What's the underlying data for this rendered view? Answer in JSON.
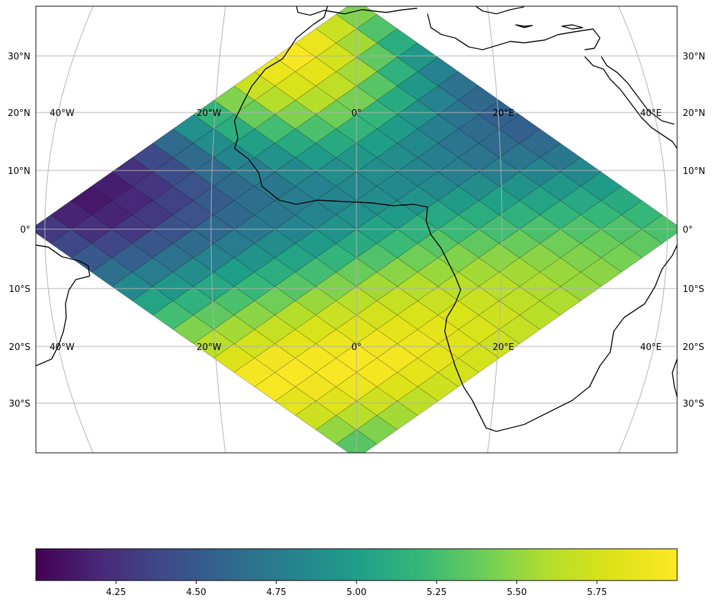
{
  "map": {
    "projection": "orthographic",
    "central_longitude": 0,
    "central_latitude": 0,
    "lon_range": [
      -48,
      48
    ],
    "lat_range": [
      -38,
      38
    ],
    "gridlines": true,
    "coastlines": true,
    "lat_ticks": [
      {
        "value": 30,
        "label": "30°N"
      },
      {
        "value": 20,
        "label": "20°N"
      },
      {
        "value": 10,
        "label": "10°N"
      },
      {
        "value": 0,
        "label": "0°"
      },
      {
        "value": -10,
        "label": "10°S"
      },
      {
        "value": -20,
        "label": "20°S"
      },
      {
        "value": -30,
        "label": "30°S"
      }
    ],
    "lon_labels_top": [
      {
        "value": -40,
        "label": "40°W"
      },
      {
        "value": -20,
        "label": "20°W"
      },
      {
        "value": 0,
        "label": "0°"
      },
      {
        "value": 20,
        "label": "20°E"
      },
      {
        "value": 40,
        "label": "40°E"
      }
    ],
    "lon_labels_bottom": [
      {
        "value": -40,
        "label": "40°W"
      },
      {
        "value": -20,
        "label": "20°W"
      },
      {
        "value": 0,
        "label": "0°"
      },
      {
        "value": 20,
        "label": "20°E"
      },
      {
        "value": 40,
        "label": "40°E"
      }
    ]
  },
  "chart_data": {
    "type": "heatmap",
    "description_field": "rotated grid (diamond) of cell values, rows from north tip to south tip",
    "grid": {
      "rows": 16,
      "cols": 16,
      "values": [
        [
          5.45,
          5.7,
          5.88,
          5.98,
          5.88,
          5.7,
          5.45,
          5.18,
          4.9,
          4.62,
          4.4,
          4.25,
          4.15,
          4.12,
          4.18,
          4.3
        ],
        [
          5.3,
          5.55,
          5.75,
          5.85,
          5.78,
          5.6,
          5.38,
          5.12,
          4.88,
          4.62,
          4.42,
          4.28,
          4.2,
          4.18,
          4.25,
          4.38
        ],
        [
          5.12,
          5.35,
          5.55,
          5.65,
          5.6,
          5.45,
          5.25,
          5.02,
          4.82,
          4.62,
          4.45,
          4.35,
          4.3,
          4.3,
          4.38,
          4.5
        ],
        [
          4.95,
          5.15,
          5.32,
          5.42,
          5.4,
          5.28,
          5.1,
          4.92,
          4.75,
          4.62,
          4.52,
          4.45,
          4.45,
          4.48,
          4.55,
          4.65
        ],
        [
          4.8,
          4.95,
          5.1,
          5.18,
          5.18,
          5.1,
          4.98,
          4.85,
          4.72,
          4.65,
          4.6,
          4.6,
          4.62,
          4.68,
          4.75,
          4.85
        ],
        [
          4.68,
          4.8,
          4.92,
          4.98,
          5.0,
          4.95,
          4.88,
          4.8,
          4.75,
          4.72,
          4.72,
          4.75,
          4.8,
          4.88,
          4.95,
          5.05
        ],
        [
          4.6,
          4.7,
          4.78,
          4.85,
          4.88,
          4.88,
          4.85,
          4.82,
          4.82,
          4.82,
          4.88,
          4.92,
          5.0,
          5.08,
          5.15,
          5.25
        ],
        [
          4.55,
          4.62,
          4.7,
          4.78,
          4.82,
          4.85,
          4.88,
          4.9,
          4.92,
          4.98,
          5.05,
          5.12,
          5.2,
          5.28,
          5.35,
          5.45
        ],
        [
          4.55,
          4.62,
          4.7,
          4.78,
          4.85,
          4.92,
          4.98,
          5.05,
          5.1,
          5.18,
          5.25,
          5.32,
          5.4,
          5.48,
          5.55,
          5.62
        ],
        [
          4.62,
          4.7,
          4.78,
          4.88,
          4.98,
          5.08,
          5.15,
          5.22,
          5.3,
          5.38,
          5.45,
          5.52,
          5.6,
          5.68,
          5.75,
          5.8
        ],
        [
          4.72,
          4.82,
          4.92,
          5.02,
          5.12,
          5.22,
          5.32,
          5.4,
          5.48,
          5.55,
          5.62,
          5.7,
          5.78,
          5.85,
          5.92,
          5.95
        ],
        [
          4.85,
          4.95,
          5.05,
          5.15,
          5.25,
          5.35,
          5.45,
          5.52,
          5.6,
          5.68,
          5.75,
          5.82,
          5.9,
          5.95,
          5.98,
          5.96
        ],
        [
          4.98,
          5.08,
          5.18,
          5.28,
          5.38,
          5.48,
          5.55,
          5.62,
          5.7,
          5.78,
          5.85,
          5.92,
          5.98,
          5.98,
          5.92,
          5.85
        ],
        [
          5.1,
          5.2,
          5.3,
          5.4,
          5.48,
          5.55,
          5.62,
          5.7,
          5.78,
          5.85,
          5.9,
          5.95,
          5.95,
          5.9,
          5.82,
          5.72
        ],
        [
          5.2,
          5.3,
          5.38,
          5.45,
          5.52,
          5.58,
          5.65,
          5.72,
          5.78,
          5.82,
          5.85,
          5.85,
          5.8,
          5.72,
          5.62,
          5.5
        ],
        [
          5.28,
          5.35,
          5.42,
          5.48,
          5.52,
          5.58,
          5.62,
          5.68,
          5.72,
          5.75,
          5.75,
          5.72,
          5.65,
          5.55,
          5.45,
          5.32
        ]
      ]
    },
    "colormap": "viridis",
    "vmin": 4.0,
    "vmax": 6.0
  },
  "colorbar": {
    "ticks": [
      {
        "value": 4.25,
        "label": "4.25"
      },
      {
        "value": 4.5,
        "label": "4.50"
      },
      {
        "value": 4.75,
        "label": "4.75"
      },
      {
        "value": 5.0,
        "label": "5.00"
      },
      {
        "value": 5.25,
        "label": "5.25"
      },
      {
        "value": 5.5,
        "label": "5.50"
      },
      {
        "value": 5.75,
        "label": "5.75"
      }
    ],
    "min": 4.0,
    "max": 6.0
  }
}
